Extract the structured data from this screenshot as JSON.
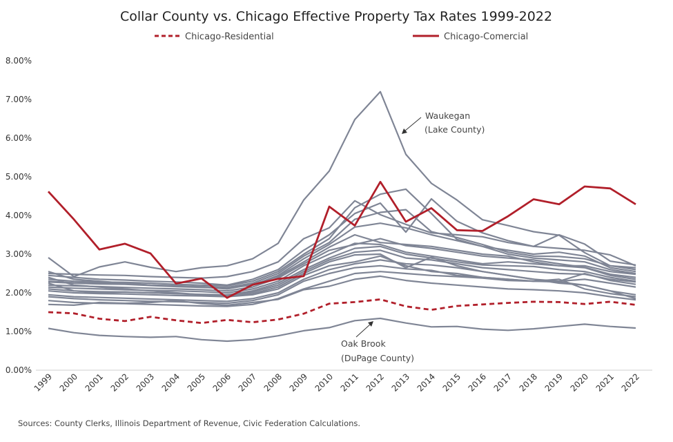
{
  "chart_data": {
    "type": "line",
    "title": "Collar County vs. Chicago Effective Property Tax Rates 1999-2022",
    "xlabel": "",
    "ylabel": "",
    "ylim": [
      0,
      8
    ],
    "y_ticks": [
      "0.00%",
      "1.00%",
      "2.00%",
      "3.00%",
      "4.00%",
      "5.00%",
      "6.00%",
      "7.00%",
      "8.00%"
    ],
    "x": [
      "1999",
      "2000",
      "2001",
      "2002",
      "2003",
      "2004",
      "2005",
      "2006",
      "2007",
      "2008",
      "2009",
      "2010",
      "2011",
      "2012",
      "2013",
      "2014",
      "2015",
      "2016",
      "2017",
      "2018",
      "2019",
      "2020",
      "2021",
      "2022"
    ],
    "grid": false,
    "legend_position": "top",
    "legend": [
      {
        "label": "Chicago-Residential",
        "style": "dashed",
        "color": "#b11f2a"
      },
      {
        "label": "Chicago-Comercial",
        "style": "solid",
        "color": "#b11f2a"
      }
    ],
    "highlight_series": [
      {
        "name": "Chicago-Residential",
        "dashed": true,
        "values": [
          1.5,
          1.47,
          1.33,
          1.27,
          1.38,
          1.29,
          1.22,
          1.3,
          1.24,
          1.31,
          1.46,
          1.72,
          1.76,
          1.83,
          1.65,
          1.56,
          1.66,
          1.7,
          1.74,
          1.77,
          1.76,
          1.71,
          1.77,
          1.69
        ]
      },
      {
        "name": "Chicago-Comercial",
        "dashed": false,
        "values": [
          4.62,
          3.9,
          3.12,
          3.27,
          3.02,
          2.24,
          2.37,
          1.87,
          2.21,
          2.36,
          2.43,
          4.23,
          3.74,
          4.87,
          3.84,
          4.19,
          3.62,
          3.6,
          3.98,
          4.42,
          4.29,
          4.75,
          4.7,
          4.29
        ]
      }
    ],
    "other_series": [
      {
        "values": [
          2.91,
          2.42,
          2.67,
          2.8,
          2.66,
          2.55,
          2.65,
          2.7,
          2.88,
          3.28,
          4.4,
          5.15,
          6.48,
          7.2,
          5.58,
          4.83,
          4.4,
          3.89,
          3.74,
          3.58,
          3.49,
          3.04,
          2.7,
          2.65
        ]
      },
      {
        "values": [
          2.5,
          2.48,
          2.46,
          2.45,
          2.42,
          2.4,
          2.38,
          2.42,
          2.55,
          2.8,
          3.4,
          3.68,
          4.38,
          4.02,
          3.77,
          3.55,
          3.5,
          3.45,
          3.3,
          3.2,
          3.5,
          3.26,
          2.82,
          2.72
        ]
      },
      {
        "values": [
          2.45,
          2.4,
          2.35,
          2.33,
          2.3,
          2.28,
          2.25,
          2.2,
          2.35,
          2.6,
          3.1,
          3.5,
          4.05,
          4.32,
          3.57,
          4.43,
          3.85,
          3.55,
          3.35,
          3.2,
          3.15,
          3.1,
          2.98,
          2.7
        ]
      },
      {
        "values": [
          2.35,
          2.3,
          2.28,
          2.27,
          2.25,
          2.22,
          2.2,
          2.18,
          2.3,
          2.55,
          3.0,
          3.4,
          4.2,
          4.55,
          4.68,
          4.05,
          3.38,
          3.2,
          3.1,
          3.0,
          3.05,
          2.95,
          2.65,
          2.55
        ]
      },
      {
        "values": [
          2.3,
          2.26,
          2.25,
          2.24,
          2.2,
          2.18,
          2.16,
          2.14,
          2.25,
          2.5,
          2.95,
          3.3,
          3.9,
          4.08,
          4.15,
          3.58,
          3.43,
          3.25,
          3.05,
          2.95,
          2.94,
          2.88,
          2.7,
          2.6
        ]
      },
      {
        "values": [
          2.28,
          2.25,
          2.23,
          2.22,
          2.19,
          2.16,
          2.14,
          2.12,
          2.2,
          2.45,
          2.88,
          3.25,
          3.7,
          3.8,
          3.68,
          3.5,
          3.35,
          3.2,
          3.0,
          2.9,
          2.85,
          2.8,
          2.6,
          2.5
        ]
      },
      {
        "values": [
          2.55,
          2.35,
          2.3,
          2.25,
          2.2,
          2.18,
          2.15,
          2.1,
          2.22,
          2.42,
          2.8,
          3.18,
          3.5,
          3.3,
          3.25,
          3.2,
          3.1,
          3.0,
          2.95,
          2.8,
          2.7,
          2.7,
          2.55,
          2.48
        ]
      },
      {
        "values": [
          2.2,
          2.18,
          2.16,
          2.14,
          2.12,
          2.1,
          2.08,
          2.05,
          2.15,
          2.38,
          2.75,
          3.1,
          3.25,
          3.4,
          3.22,
          3.15,
          3.05,
          2.95,
          2.9,
          2.85,
          2.75,
          2.66,
          2.48,
          2.4
        ]
      },
      {
        "values": [
          2.15,
          2.12,
          2.1,
          2.08,
          2.06,
          2.05,
          2.03,
          2.0,
          2.1,
          2.3,
          2.7,
          3.0,
          3.28,
          3.25,
          3.05,
          2.95,
          2.85,
          2.75,
          2.8,
          2.75,
          2.7,
          2.65,
          2.45,
          2.35
        ]
      },
      {
        "values": [
          2.25,
          2.05,
          2.0,
          2.02,
          2.0,
          1.98,
          1.96,
          1.95,
          2.05,
          2.25,
          2.6,
          2.9,
          3.15,
          3.2,
          3.0,
          2.9,
          2.8,
          2.72,
          2.7,
          2.68,
          2.6,
          2.55,
          2.4,
          2.3
        ]
      },
      {
        "values": [
          2.1,
          2.05,
          2.03,
          2.02,
          2.0,
          1.98,
          1.95,
          1.92,
          2.02,
          2.2,
          2.55,
          2.85,
          3.05,
          3.1,
          2.9,
          2.85,
          2.75,
          2.65,
          2.6,
          2.55,
          2.5,
          2.48,
          2.35,
          2.28
        ]
      },
      {
        "values": [
          2.05,
          2.0,
          1.98,
          1.97,
          1.95,
          1.93,
          1.92,
          1.9,
          1.98,
          2.15,
          2.5,
          2.8,
          2.98,
          3.0,
          2.65,
          2.92,
          2.7,
          2.55,
          2.45,
          2.35,
          2.3,
          2.5,
          2.32,
          2.22
        ]
      },
      {
        "values": [
          2.4,
          2.2,
          2.15,
          2.1,
          2.05,
          2.0,
          1.95,
          1.9,
          1.95,
          2.1,
          2.45,
          2.7,
          2.8,
          2.95,
          2.7,
          2.55,
          2.5,
          2.4,
          2.35,
          2.3,
          2.3,
          2.35,
          2.25,
          2.15
        ]
      },
      {
        "values": [
          1.95,
          1.9,
          1.88,
          1.86,
          1.84,
          1.82,
          1.8,
          1.78,
          1.85,
          2.0,
          2.35,
          2.6,
          2.75,
          2.85,
          2.75,
          2.72,
          2.65,
          2.55,
          2.45,
          2.35,
          2.25,
          2.2,
          2.05,
          1.95
        ]
      },
      {
        "values": [
          1.9,
          1.85,
          1.82,
          1.8,
          1.78,
          1.77,
          1.75,
          1.73,
          1.8,
          1.95,
          2.3,
          2.5,
          2.65,
          2.7,
          2.62,
          2.58,
          2.45,
          2.4,
          2.35,
          2.3,
          2.35,
          2.1,
          1.98,
          1.9
        ]
      },
      {
        "values": [
          1.8,
          1.75,
          1.73,
          1.72,
          1.7,
          1.68,
          1.66,
          1.65,
          1.7,
          1.85,
          2.1,
          2.3,
          2.5,
          2.55,
          2.5,
          2.45,
          2.42,
          2.38,
          2.32,
          2.3,
          2.28,
          2.2,
          2.05,
          1.85
        ]
      },
      {
        "values": [
          1.7,
          1.68,
          1.75,
          1.73,
          1.75,
          1.8,
          1.72,
          1.68,
          1.75,
          1.83,
          2.08,
          2.17,
          2.35,
          2.43,
          2.32,
          2.25,
          2.2,
          2.15,
          2.1,
          2.08,
          2.05,
          2.0,
          1.9,
          1.82
        ]
      },
      {
        "values": [
          1.08,
          0.97,
          0.9,
          0.87,
          0.85,
          0.87,
          0.79,
          0.75,
          0.79,
          0.89,
          1.02,
          1.1,
          1.28,
          1.34,
          1.22,
          1.12,
          1.13,
          1.06,
          1.03,
          1.07,
          1.13,
          1.19,
          1.13,
          1.09
        ]
      }
    ],
    "annotations": [
      {
        "text_line1": "Waukegan",
        "text_line2": "(Lake County)"
      },
      {
        "text_line1": "Oak Brook",
        "text_line2": "(DuPage County)"
      }
    ],
    "source": "Sources: County Clerks, Illinois Department of Revenue, Civic Federation Calculations.",
    "colors": {
      "highlight": "#b11f2a",
      "other": "#7f8595"
    }
  }
}
